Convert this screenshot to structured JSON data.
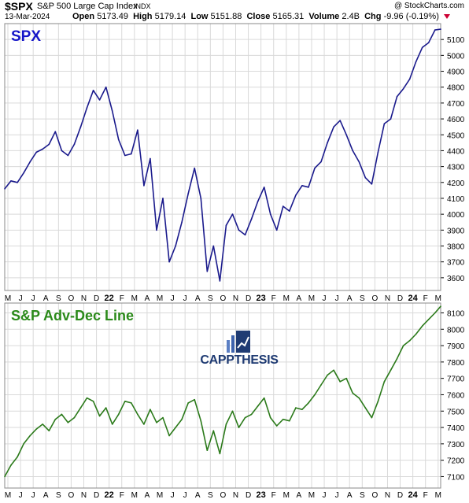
{
  "header": {
    "ticker": "$SPX",
    "description": "S&P 500 Large Cap Index",
    "exchange": "INDX",
    "attribution": "@ StockCharts.com",
    "date": "13-Mar-2024",
    "open_label": "Open",
    "open": "5173.49",
    "high_label": "High",
    "high": "5179.14",
    "low_label": "Low",
    "low": "5151.88",
    "close_label": "Close",
    "close": "5165.31",
    "volume_label": "Volume",
    "volume": "2.4B",
    "chg_label": "Chg",
    "chg": "-9.96 (-0.19%)"
  },
  "watermark": {
    "text": "CAPPTHESIS",
    "icon": "bar-chart-logo-icon"
  },
  "colors": {
    "spx_line": "#1a1a8c",
    "ad_line": "#2b7a1a",
    "grid": "#d9d9d9",
    "spx_label": "#1515c8",
    "ad_label": "#2b8a1a",
    "chg": "#cc0033"
  },
  "x_axis_labels": [
    "M",
    "J",
    "J",
    "A",
    "S",
    "O",
    "N",
    "D",
    "22",
    "F",
    "M",
    "A",
    "M",
    "J",
    "J",
    "A",
    "S",
    "O",
    "N",
    "D",
    "23",
    "F",
    "M",
    "A",
    "M",
    "J",
    "J",
    "A",
    "S",
    "O",
    "N",
    "D",
    "24",
    "F",
    "M"
  ],
  "chart_data": [
    {
      "type": "line",
      "panel": "SPX",
      "title": "SPX",
      "yticks": [
        3600,
        3700,
        3800,
        3900,
        4000,
        4100,
        4200,
        4300,
        4400,
        4500,
        4600,
        4700,
        4800,
        4900,
        5000,
        5100
      ],
      "ylim": [
        3520,
        5200
      ],
      "x_range_months": [
        0,
        34.45
      ],
      "x": [
        0,
        0.5,
        1,
        1.5,
        2,
        2.5,
        3,
        3.5,
        4,
        4.5,
        5,
        5.5,
        6,
        6.5,
        7,
        7.5,
        8,
        8.5,
        9,
        9.5,
        10,
        10.5,
        11,
        11.5,
        12,
        12.5,
        13,
        13.5,
        14,
        14.5,
        15,
        15.5,
        16,
        16.5,
        17,
        17.5,
        18,
        18.5,
        19,
        19.5,
        20,
        20.5,
        21,
        21.5,
        22,
        22.5,
        23,
        23.5,
        24,
        24.5,
        25,
        25.5,
        26,
        26.5,
        27,
        27.5,
        28,
        28.5,
        29,
        29.5,
        30,
        30.5,
        31,
        31.5,
        32,
        32.5,
        33,
        33.5,
        34,
        34.45
      ],
      "values": [
        4160,
        4210,
        4200,
        4260,
        4330,
        4390,
        4410,
        4440,
        4520,
        4400,
        4370,
        4440,
        4550,
        4670,
        4780,
        4720,
        4800,
        4650,
        4470,
        4370,
        4380,
        4530,
        4180,
        4350,
        3900,
        4100,
        3700,
        3800,
        3950,
        4130,
        4290,
        4100,
        3640,
        3800,
        3580,
        3930,
        4000,
        3900,
        3870,
        3970,
        4080,
        4170,
        4000,
        3900,
        4050,
        4020,
        4120,
        4180,
        4170,
        4290,
        4330,
        4450,
        4550,
        4590,
        4500,
        4400,
        4330,
        4230,
        4190,
        4390,
        4570,
        4600,
        4740,
        4790,
        4850,
        4960,
        5050,
        5080,
        5160,
        5165
      ]
    },
    {
      "type": "line",
      "panel": "S&P Adv-Dec Line",
      "title": "S&P Adv-Dec Line",
      "yticks": [
        7100,
        7200,
        7300,
        7400,
        7500,
        7600,
        7700,
        7800,
        7900,
        8000,
        8100
      ],
      "ylim": [
        7030,
        8160
      ],
      "x_range_months": [
        0,
        34.45
      ],
      "x": [
        0,
        0.5,
        1,
        1.5,
        2,
        2.5,
        3,
        3.5,
        4,
        4.5,
        5,
        5.5,
        6,
        6.5,
        7,
        7.5,
        8,
        8.5,
        9,
        9.5,
        10,
        10.5,
        11,
        11.5,
        12,
        12.5,
        13,
        13.5,
        14,
        14.5,
        15,
        15.5,
        16,
        16.5,
        17,
        17.5,
        18,
        18.5,
        19,
        19.5,
        20,
        20.5,
        21,
        21.5,
        22,
        22.5,
        23,
        23.5,
        24,
        24.5,
        25,
        25.5,
        26,
        26.5,
        27,
        27.5,
        28,
        28.5,
        29,
        29.5,
        30,
        30.5,
        31,
        31.5,
        32,
        32.5,
        33,
        33.5,
        34,
        34.45
      ],
      "values": [
        7100,
        7170,
        7220,
        7300,
        7350,
        7390,
        7420,
        7380,
        7450,
        7480,
        7430,
        7460,
        7520,
        7580,
        7560,
        7470,
        7520,
        7420,
        7480,
        7560,
        7550,
        7480,
        7420,
        7510,
        7430,
        7460,
        7350,
        7400,
        7450,
        7550,
        7570,
        7440,
        7260,
        7380,
        7240,
        7420,
        7500,
        7400,
        7460,
        7480,
        7530,
        7580,
        7460,
        7410,
        7450,
        7440,
        7520,
        7510,
        7550,
        7600,
        7660,
        7720,
        7750,
        7680,
        7700,
        7610,
        7580,
        7520,
        7460,
        7560,
        7680,
        7750,
        7820,
        7900,
        7930,
        7970,
        8020,
        8060,
        8100,
        8140
      ]
    }
  ]
}
